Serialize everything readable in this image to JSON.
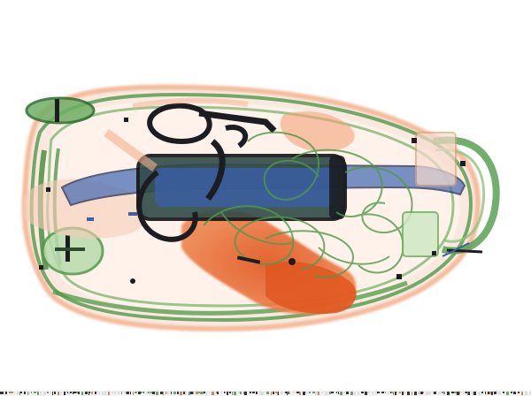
{
  "image": {
    "subject": "x-ray-baggage-scan",
    "background_color": "#ffffff",
    "palette": {
      "organic_orange": "#e86a2c",
      "organic_orange_light": "#f4b08c",
      "mixed_green": "#4f9a4a",
      "mixed_green_light": "#8cc47e",
      "metal_blue": "#3b5fa8",
      "dense_black": "#1b1d22"
    }
  }
}
